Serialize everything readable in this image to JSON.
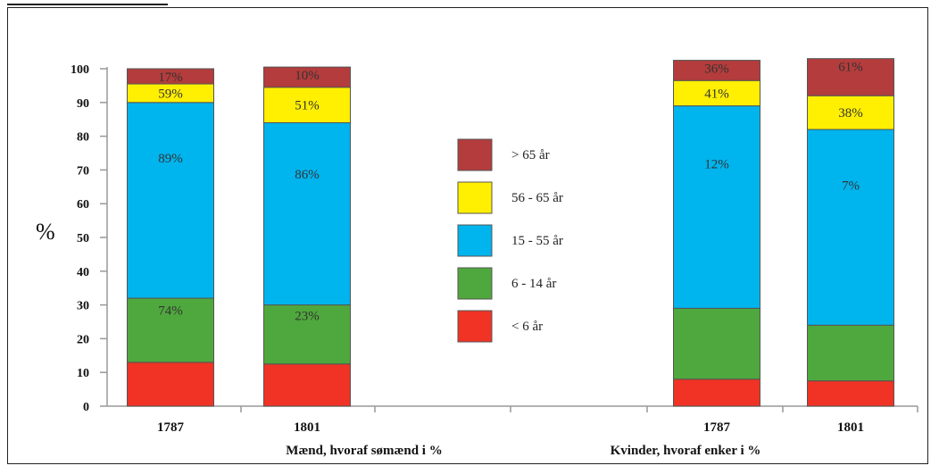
{
  "chart_data": {
    "type": "bar",
    "stacked": true,
    "ylabel": "%",
    "ylim": [
      0,
      100
    ],
    "yticks": [
      0,
      10,
      20,
      30,
      40,
      50,
      60,
      70,
      80,
      90,
      100
    ],
    "grid": false,
    "legend_position": "center",
    "groups": [
      {
        "label": "Mænd, hvoraf sømænd i %",
        "categories": [
          "1787",
          "1801"
        ]
      },
      {
        "label": "Kvinder, hvoraf enker i %",
        "categories": [
          "1787",
          "1801"
        ]
      }
    ],
    "series": [
      {
        "name": "< 6 år",
        "color": "#f03325",
        "values": [
          13,
          12.5,
          8,
          7.5
        ],
        "labels": [
          "",
          "",
          "",
          ""
        ]
      },
      {
        "name": "6 - 14 år",
        "color": "#4fa83d",
        "values": [
          19,
          17.5,
          21,
          16.5
        ],
        "labels": [
          "74%",
          "23%",
          "",
          ""
        ]
      },
      {
        "name": "15 - 55 år",
        "color": "#00b4ee",
        "values": [
          58,
          54,
          60,
          58
        ],
        "labels": [
          "89%",
          "86%",
          "12%",
          "7%"
        ]
      },
      {
        "name": "56 - 65 år",
        "color": "#ffef00",
        "values": [
          5.5,
          10.5,
          7.5,
          10
        ],
        "labels": [
          "59%",
          "51%",
          "41%",
          "38%"
        ]
      },
      {
        "name": "> 65 år",
        "color": "#b43c3c",
        "values": [
          4.5,
          6,
          6,
          11
        ],
        "labels": [
          "17%",
          "10%",
          "36%",
          "61%"
        ]
      }
    ],
    "x": [
      "1787",
      "1801",
      "1787",
      "1801"
    ]
  }
}
